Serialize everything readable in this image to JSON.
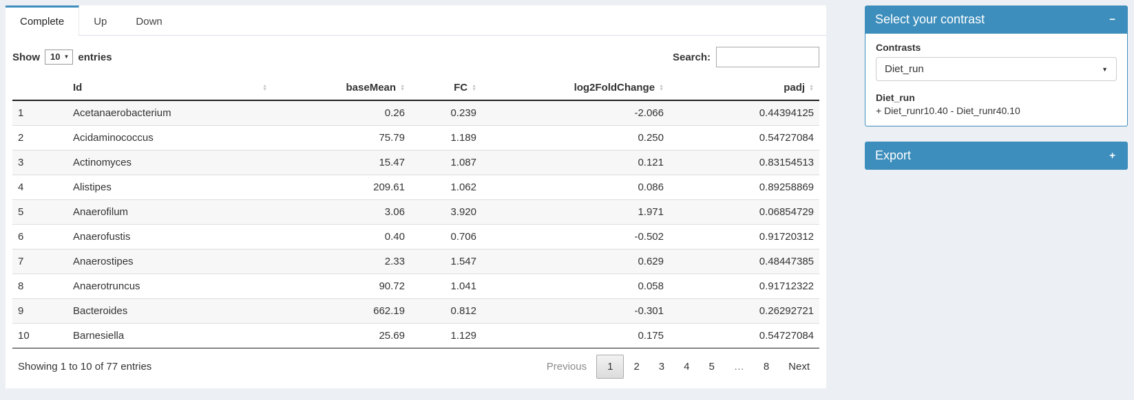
{
  "colors": {
    "accent": "#3d8ebc",
    "page_bg": "#ecf0f5"
  },
  "tabs": {
    "complete": "Complete",
    "up": "Up",
    "down": "Down"
  },
  "length_menu": {
    "show": "Show",
    "value": "10",
    "entries": "entries"
  },
  "search": {
    "label": "Search:",
    "value": ""
  },
  "table": {
    "headers": {
      "id": "Id",
      "basemean": "baseMean",
      "fc": "FC",
      "l2fc": "log2FoldChange",
      "padj": "padj"
    },
    "rows": [
      [
        "1",
        "Acetanaerobacterium",
        "0.26",
        "0.239",
        "-2.066",
        "0.44394125"
      ],
      [
        "2",
        "Acidaminococcus",
        "75.79",
        "1.189",
        "0.250",
        "0.54727084"
      ],
      [
        "3",
        "Actinomyces",
        "15.47",
        "1.087",
        "0.121",
        "0.83154513"
      ],
      [
        "4",
        "Alistipes",
        "209.61",
        "1.062",
        "0.086",
        "0.89258869"
      ],
      [
        "5",
        "Anaerofilum",
        "3.06",
        "3.920",
        "1.971",
        "0.06854729"
      ],
      [
        "6",
        "Anaerofustis",
        "0.40",
        "0.706",
        "-0.502",
        "0.91720312"
      ],
      [
        "7",
        "Anaerostipes",
        "2.33",
        "1.547",
        "0.629",
        "0.48447385"
      ],
      [
        "8",
        "Anaerotruncus",
        "90.72",
        "1.041",
        "0.058",
        "0.91712322"
      ],
      [
        "9",
        "Bacteroides",
        "662.19",
        "0.812",
        "-0.301",
        "0.26292721"
      ],
      [
        "10",
        "Barnesiella",
        "25.69",
        "1.129",
        "0.175",
        "0.54727084"
      ]
    ]
  },
  "footer": {
    "info": "Showing 1 to 10 of 77 entries",
    "pages": {
      "previous": "Previous",
      "p1": "1",
      "p2": "2",
      "p3": "3",
      "p4": "4",
      "p5": "5",
      "ellipsis": "…",
      "p8": "8",
      "next": "Next"
    }
  },
  "contrast_box": {
    "title": "Select your contrast",
    "collapse": "−",
    "contrasts_label": "Contrasts",
    "selected_contrast": "Diet_run",
    "detail_title": "Diet_run",
    "detail_formula": "+ Diet_runr10.40 - Diet_runr40.10"
  },
  "export_box": {
    "title": "Export",
    "collapse": "+"
  }
}
